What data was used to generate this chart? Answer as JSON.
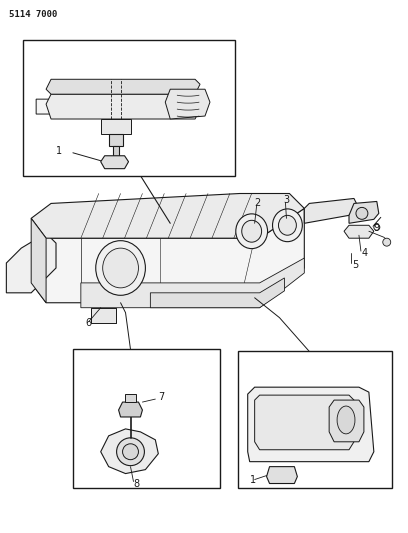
{
  "page_id": "5114 7000",
  "bg": "#ffffff",
  "lc": "#1a1a1a",
  "figsize": [
    4.08,
    5.33
  ],
  "dpi": 100,
  "font_size": 7,
  "font_size_pid": 6.5
}
